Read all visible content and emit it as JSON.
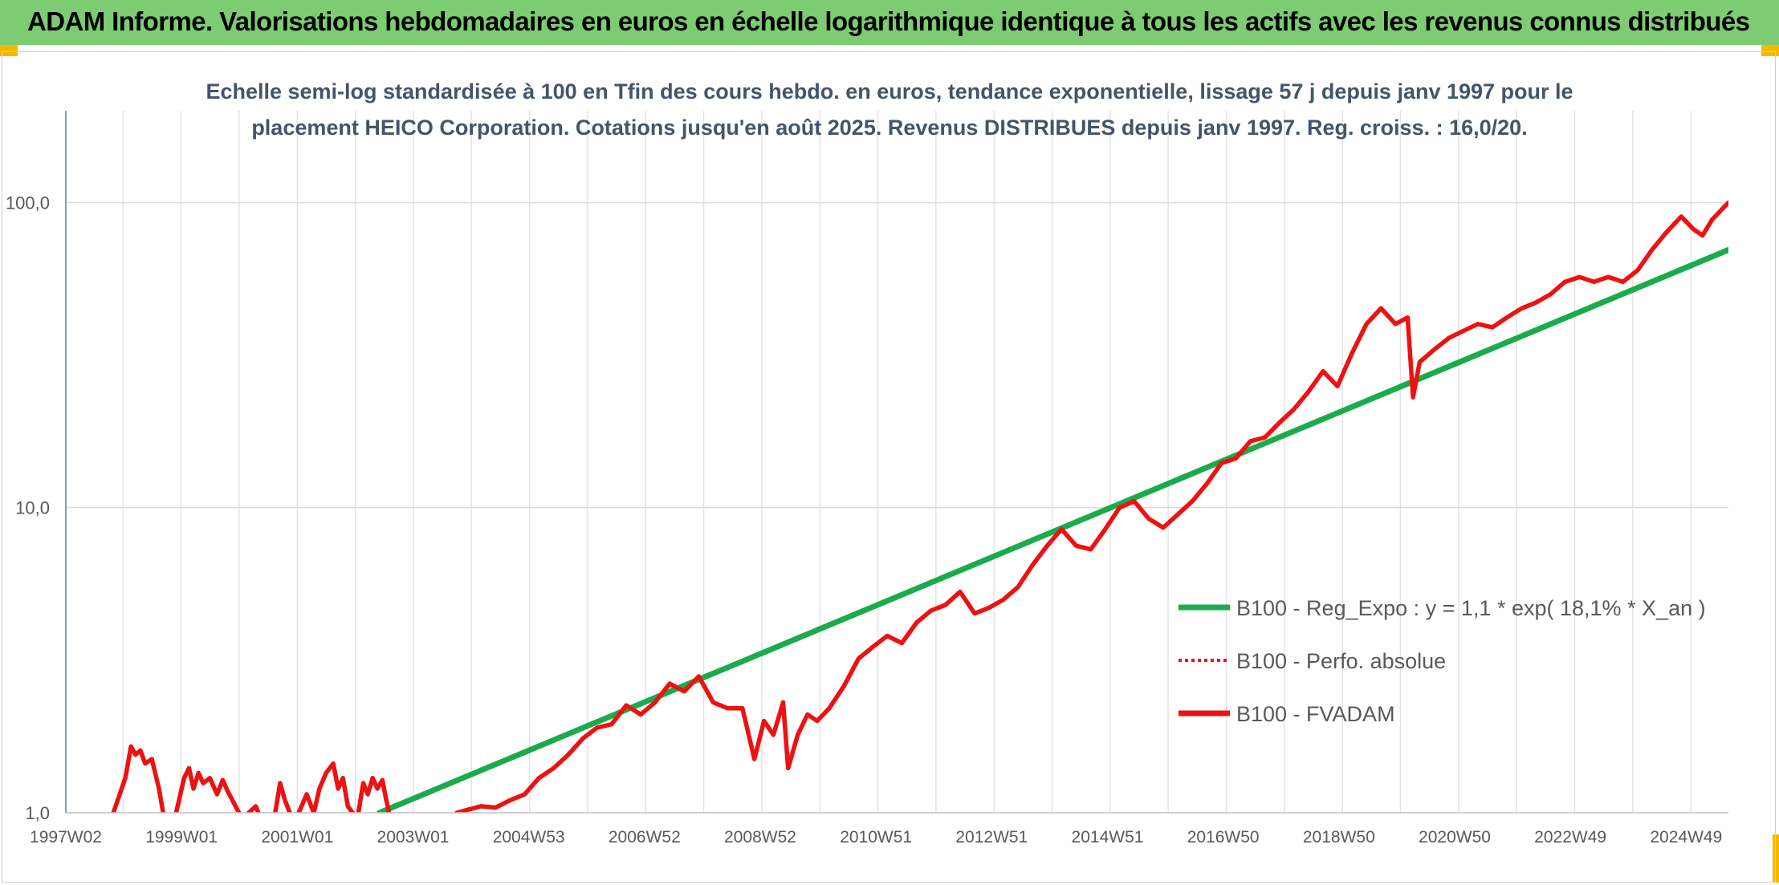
{
  "header": {
    "title": "ADAM Informe. Valorisations hebdomadaires en euros en échelle logarithmique identique à tous les actifs avec les revenus connus distribués"
  },
  "colors": {
    "banner": "#7dcb72",
    "accent": "#f5b800",
    "trend": "#1aab4b",
    "fvadam": "#ee1111",
    "perfo": "#ee1111"
  },
  "chart_data": {
    "type": "line",
    "title_lines": [
      "Echelle semi-log standardisée à 100 en Tfin des cours hebdo. en euros, tendance exponentielle, lissage 57 j depuis janv 1997 pour le",
      "placement HEICO Corporation. Cotations jusqu'en août 2025. Revenus DISTRIBUES depuis janv 1997. Reg. croiss. : 16,0/20."
    ],
    "y_scale": "log",
    "ylim": [
      1,
      200
    ],
    "y_ticks": [
      {
        "value": 100,
        "label": "100,0"
      },
      {
        "value": 10,
        "label": "10,0"
      },
      {
        "value": 1,
        "label": "1,0"
      }
    ],
    "xlim": [
      "1997-01-06",
      "2025-08-25"
    ],
    "x_ticks": [
      {
        "date": "1997-01-06",
        "label": "1997W02"
      },
      {
        "date": "1999-01-04",
        "label": "1999W01"
      },
      {
        "date": "2001-01-01",
        "label": "2001W01"
      },
      {
        "date": "2002-12-30",
        "label": "2003W01"
      },
      {
        "date": "2004-12-27",
        "label": "2004W53"
      },
      {
        "date": "2006-12-25",
        "label": "2006W52"
      },
      {
        "date": "2008-12-22",
        "label": "2008W52"
      },
      {
        "date": "2010-12-20",
        "label": "2010W51"
      },
      {
        "date": "2012-12-17",
        "label": "2012W51"
      },
      {
        "date": "2014-12-15",
        "label": "2014W51"
      },
      {
        "date": "2016-12-12",
        "label": "2016W50"
      },
      {
        "date": "2018-12-10",
        "label": "2018W50"
      },
      {
        "date": "2020-12-07",
        "label": "2020W50"
      },
      {
        "date": "2022-12-05",
        "label": "2022W49"
      },
      {
        "date": "2024-12-02",
        "label": "2024W49"
      }
    ],
    "grid": true,
    "legend_position": "right",
    "series": [
      {
        "name": "B100 - Reg_Expo : y = 1,1 * exp( 18,1% *  X_an )",
        "style": "solid",
        "color": "#1aab4b",
        "points": [
          [
            "2002-06-01",
            1.0
          ],
          [
            "2025-08-25",
            70.0
          ]
        ]
      },
      {
        "name": "B100 - Perfo. absolue",
        "style": "dotted",
        "color": "#ee1111",
        "points": []
      },
      {
        "name": "B100 - FVADAM",
        "style": "solid",
        "color": "#ee1111",
        "segments": [
          [
            [
              "1997-11-01",
              1.0
            ],
            [
              "1998-01-15",
              1.3
            ],
            [
              "1998-02-20",
              1.65
            ],
            [
              "1998-03-20",
              1.55
            ],
            [
              "1998-04-20",
              1.6
            ],
            [
              "1998-05-20",
              1.45
            ],
            [
              "1998-07-01",
              1.5
            ],
            [
              "1998-08-15",
              1.2
            ],
            [
              "1998-09-10",
              1.0
            ]
          ],
          [
            [
              "1998-12-01",
              1.0
            ],
            [
              "1999-01-20",
              1.3
            ],
            [
              "1999-02-20",
              1.4
            ],
            [
              "1999-03-20",
              1.2
            ],
            [
              "1999-04-20",
              1.35
            ],
            [
              "1999-05-20",
              1.25
            ],
            [
              "1999-07-01",
              1.3
            ],
            [
              "1999-08-15",
              1.15
            ],
            [
              "1999-09-20",
              1.28
            ],
            [
              "1999-10-20",
              1.18
            ],
            [
              "1999-11-20",
              1.1
            ],
            [
              "1999-12-31",
              1.0
            ]
          ],
          [
            [
              "2000-03-01",
              1.0
            ],
            [
              "2000-04-15",
              1.05
            ],
            [
              "2000-05-01",
              1.0
            ]
          ],
          [
            [
              "2000-08-15",
              1.0
            ],
            [
              "2000-09-15",
              1.25
            ],
            [
              "2000-10-15",
              1.1
            ],
            [
              "2000-11-15",
              1.0
            ]
          ],
          [
            [
              "2001-01-10",
              1.0
            ],
            [
              "2001-03-01",
              1.15
            ],
            [
              "2001-04-15",
              1.0
            ],
            [
              "2001-05-20",
              1.2
            ],
            [
              "2001-07-01",
              1.35
            ],
            [
              "2001-08-15",
              1.45
            ],
            [
              "2001-09-15",
              1.2
            ],
            [
              "2001-10-15",
              1.3
            ],
            [
              "2001-11-15",
              1.05
            ],
            [
              "2001-12-15",
              1.0
            ]
          ],
          [
            [
              "2002-01-20",
              1.0
            ],
            [
              "2002-02-20",
              1.25
            ],
            [
              "2002-03-20",
              1.15
            ],
            [
              "2002-04-20",
              1.3
            ],
            [
              "2002-05-20",
              1.2
            ],
            [
              "2002-06-20",
              1.28
            ],
            [
              "2002-07-15",
              1.1
            ],
            [
              "2002-08-01",
              1.0
            ]
          ],
          [
            [
              "2003-10-01",
              1.0
            ],
            [
              "2003-12-01",
              1.02
            ],
            [
              "2004-03-01",
              1.05
            ],
            [
              "2004-06-01",
              1.04
            ],
            [
              "2004-09-01",
              1.1
            ],
            [
              "2004-12-01",
              1.15
            ],
            [
              "2005-03-01",
              1.3
            ],
            [
              "2005-06-01",
              1.4
            ],
            [
              "2005-09-01",
              1.55
            ],
            [
              "2005-12-01",
              1.75
            ],
            [
              "2006-03-01",
              1.9
            ],
            [
              "2006-06-01",
              1.95
            ],
            [
              "2006-09-01",
              2.25
            ],
            [
              "2006-12-01",
              2.1
            ],
            [
              "2007-03-01",
              2.3
            ],
            [
              "2007-06-01",
              2.65
            ],
            [
              "2007-09-01",
              2.5
            ],
            [
              "2007-12-01",
              2.8
            ],
            [
              "2008-03-01",
              2.3
            ],
            [
              "2008-06-01",
              2.2
            ],
            [
              "2008-09-01",
              2.2
            ],
            [
              "2008-11-15",
              1.5
            ],
            [
              "2009-01-15",
              2.0
            ],
            [
              "2009-03-15",
              1.8
            ],
            [
              "2009-05-15",
              2.3
            ],
            [
              "2009-06-15",
              1.4
            ],
            [
              "2009-08-15",
              1.8
            ],
            [
              "2009-10-15",
              2.1
            ],
            [
              "2009-12-15",
              2.0
            ],
            [
              "2010-03-01",
              2.2
            ],
            [
              "2010-06-01",
              2.6
            ],
            [
              "2010-09-01",
              3.2
            ],
            [
              "2010-12-01",
              3.5
            ],
            [
              "2011-03-01",
              3.8
            ],
            [
              "2011-06-01",
              3.6
            ],
            [
              "2011-09-01",
              4.2
            ],
            [
              "2011-12-01",
              4.6
            ],
            [
              "2012-03-01",
              4.8
            ],
            [
              "2012-06-01",
              5.3
            ],
            [
              "2012-09-01",
              4.5
            ],
            [
              "2012-12-01",
              4.7
            ],
            [
              "2013-03-01",
              5.0
            ],
            [
              "2013-06-01",
              5.5
            ],
            [
              "2013-09-01",
              6.5
            ],
            [
              "2013-12-01",
              7.5
            ],
            [
              "2014-03-01",
              8.5
            ],
            [
              "2014-06-01",
              7.5
            ],
            [
              "2014-09-01",
              7.3
            ],
            [
              "2014-12-01",
              8.5
            ],
            [
              "2015-03-01",
              10.0
            ],
            [
              "2015-06-01",
              10.5
            ],
            [
              "2015-09-01",
              9.2
            ],
            [
              "2015-12-01",
              8.6
            ],
            [
              "2016-03-01",
              9.5
            ],
            [
              "2016-06-01",
              10.5
            ],
            [
              "2016-09-01",
              12.0
            ],
            [
              "2016-12-01",
              14.0
            ],
            [
              "2017-03-01",
              14.5
            ],
            [
              "2017-06-01",
              16.5
            ],
            [
              "2017-09-01",
              17.0
            ],
            [
              "2017-12-01",
              19.0
            ],
            [
              "2018-03-01",
              21.0
            ],
            [
              "2018-06-01",
              24.0
            ],
            [
              "2018-09-01",
              28.0
            ],
            [
              "2018-12-01",
              25.0
            ],
            [
              "2019-03-01",
              32.0
            ],
            [
              "2019-06-01",
              40.0
            ],
            [
              "2019-09-01",
              45.0
            ],
            [
              "2019-12-01",
              40.0
            ],
            [
              "2020-02-15",
              42.0
            ],
            [
              "2020-03-20",
              23.0
            ],
            [
              "2020-05-01",
              30.0
            ],
            [
              "2020-08-01",
              33.0
            ],
            [
              "2020-11-01",
              36.0
            ],
            [
              "2021-02-01",
              38.0
            ],
            [
              "2021-05-01",
              40.0
            ],
            [
              "2021-08-01",
              39.0
            ],
            [
              "2021-11-01",
              42.0
            ],
            [
              "2022-02-01",
              45.0
            ],
            [
              "2022-05-01",
              47.0
            ],
            [
              "2022-08-01",
              50.0
            ],
            [
              "2022-11-01",
              55.0
            ],
            [
              "2023-02-01",
              57.0
            ],
            [
              "2023-05-01",
              55.0
            ],
            [
              "2023-08-01",
              57.0
            ],
            [
              "2023-11-01",
              55.0
            ],
            [
              "2024-02-01",
              60.0
            ],
            [
              "2024-05-01",
              70.0
            ],
            [
              "2024-08-01",
              80.0
            ],
            [
              "2024-11-01",
              90.0
            ],
            [
              "2025-01-15",
              82.0
            ],
            [
              "2025-03-15",
              78.0
            ],
            [
              "2025-05-15",
              88.0
            ],
            [
              "2025-07-15",
              95.0
            ],
            [
              "2025-08-25",
              100.0
            ]
          ]
        ]
      }
    ]
  }
}
